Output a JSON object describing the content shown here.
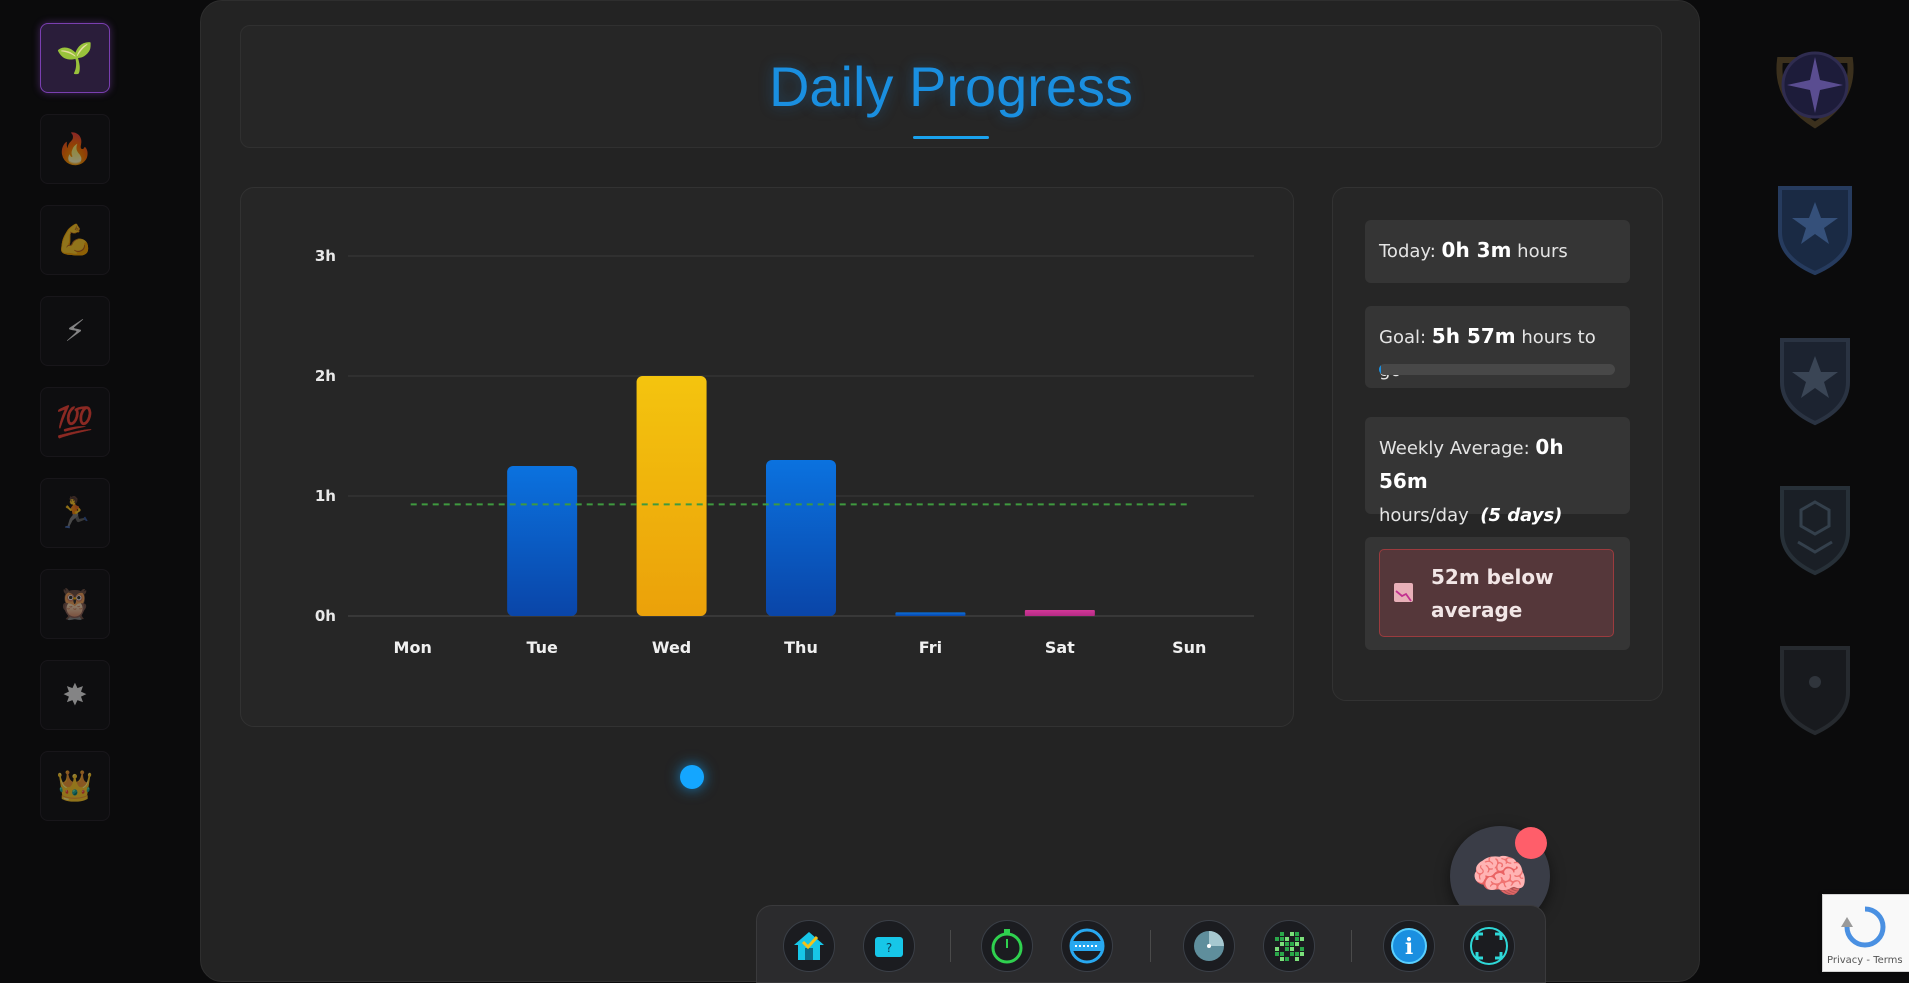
{
  "sidebar": {
    "items": [
      {
        "icon": "seedling-icon",
        "glyph": "🌱",
        "active": true
      },
      {
        "icon": "fire-icon",
        "glyph": "🔥",
        "active": false
      },
      {
        "icon": "flexed-biceps-icon",
        "glyph": "💪",
        "active": false
      },
      {
        "icon": "lightning-icon",
        "glyph": "⚡",
        "active": false
      },
      {
        "icon": "hundred-points-icon",
        "glyph": "💯",
        "active": false
      },
      {
        "icon": "running-person-icon",
        "glyph": "🏃",
        "active": false
      },
      {
        "icon": "owl-icon",
        "glyph": "🦉",
        "active": false
      },
      {
        "icon": "sparkle-star-icon",
        "glyph": "✸",
        "active": false
      },
      {
        "icon": "crown-icon",
        "glyph": "👑",
        "active": false
      }
    ]
  },
  "header": {
    "title": "Daily Progress"
  },
  "colors": {
    "accent": "#1a8fe0",
    "bar_blue": "#0a6fd8",
    "bar_yellow": "#f2b70a",
    "bar_pink": "#c2318f",
    "average_line": "#3f9a3f",
    "alert_bg": "#55373a"
  },
  "chart_data": {
    "type": "bar",
    "categories": [
      "Mon",
      "Tue",
      "Wed",
      "Thu",
      "Fri",
      "Sat",
      "Sun"
    ],
    "values": [
      0,
      1.25,
      2.0,
      1.3,
      0.03,
      0.05,
      0
    ],
    "y_unit": "hours",
    "yticks": [
      "0h",
      "1h",
      "2h",
      "3h"
    ],
    "ylim": [
      0,
      3
    ],
    "average": 0.93,
    "bar_colors": [
      "blue",
      "blue",
      "yellow",
      "blue",
      "blue",
      "pink",
      "blue"
    ],
    "grid": true
  },
  "stats": {
    "today_label": "Today:",
    "today_value": "0h 3m",
    "today_unit": "hours",
    "goal_label": "Goal:",
    "goal_value": "5h 57m",
    "goal_unit": "hours to go",
    "goal_progress": 0.01,
    "weekly_label": "Weekly Average:",
    "weekly_value": "0h 56m",
    "weekly_unit": "hours/day",
    "weekly_days": "(5 days)",
    "comparison": "52m below average",
    "comparison_icon": "chart-decreasing-icon"
  },
  "brain_button": {
    "icon": "brain-icon",
    "glyph": "🧠"
  },
  "dock": {
    "items": [
      {
        "icon": "home-icon"
      },
      {
        "icon": "help-card-icon"
      },
      {
        "icon": "stopwatch-icon"
      },
      {
        "icon": "keyboard-icon"
      },
      {
        "icon": "radar-icon"
      },
      {
        "icon": "pixel-grid-icon"
      },
      {
        "icon": "info-icon"
      },
      {
        "icon": "fullscreen-icon"
      }
    ]
  },
  "badges": [
    "compass-crest-badge-icon",
    "star-wings-badge-icon",
    "star-shield-badge-icon",
    "hexagon-chevron-badge-icon",
    "dot-shield-badge-icon"
  ],
  "recaptcha": {
    "privacy": "Privacy",
    "separator": " - ",
    "terms": "Terms"
  }
}
